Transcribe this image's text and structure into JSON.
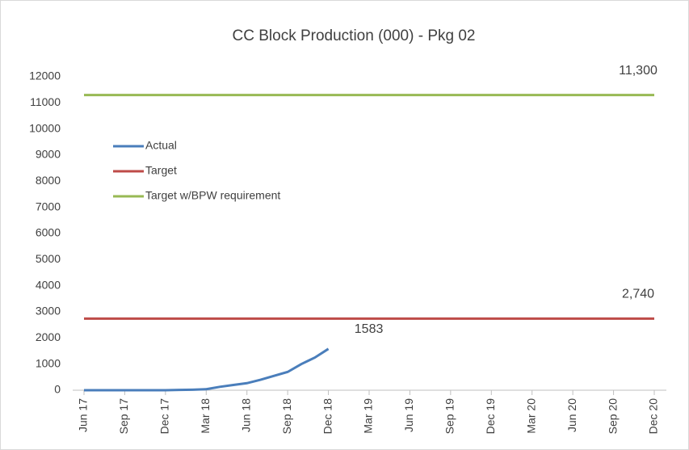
{
  "chart_data": {
    "type": "line",
    "title": "CC Block Production (000) - Pkg 02",
    "categories": [
      "Jun 17",
      null,
      null,
      "Sep 17",
      null,
      null,
      "Dec 17",
      null,
      null,
      "Mar 18",
      null,
      null,
      "Jun 18",
      null,
      null,
      "Sep 18",
      null,
      null,
      "Dec 18",
      null,
      null,
      "Mar 19",
      null,
      null,
      "Jun 19",
      null,
      null,
      "Sep 19",
      null,
      null,
      "Dec 19",
      null,
      null,
      "Mar 20",
      null,
      null,
      "Jun 20",
      null,
      null,
      "Sep 20",
      null,
      null,
      "Dec 20"
    ],
    "series": [
      {
        "name": "Actual",
        "color": "#4a7ebb",
        "values": [
          0,
          0,
          0,
          0,
          0,
          0,
          0,
          10,
          20,
          40,
          130,
          200,
          270,
          400,
          550,
          700,
          1000,
          1250,
          1583,
          null,
          null,
          null,
          null,
          null,
          null,
          null,
          null,
          null,
          null,
          null,
          null,
          null,
          null,
          null,
          null,
          null,
          null,
          null,
          null,
          null,
          null,
          null,
          null
        ],
        "value_labels": [
          null,
          null,
          null,
          null,
          null,
          null,
          null,
          null,
          null,
          null,
          null,
          null,
          null,
          null,
          null,
          null,
          null,
          null,
          "1583",
          null,
          null,
          null,
          null,
          null,
          null,
          null,
          null,
          null,
          null,
          null,
          null,
          null,
          null,
          null,
          null,
          null,
          null,
          null,
          null,
          null,
          null,
          null,
          null
        ]
      },
      {
        "name": "Target",
        "color": "#be4b48",
        "values": [
          2740,
          2740,
          2740,
          2740,
          2740,
          2740,
          2740,
          2740,
          2740,
          2740,
          2740,
          2740,
          2740,
          2740,
          2740,
          2740,
          2740,
          2740,
          2740,
          2740,
          2740,
          2740,
          2740,
          2740,
          2740,
          2740,
          2740,
          2740,
          2740,
          2740,
          2740,
          2740,
          2740,
          2740,
          2740,
          2740,
          2740,
          2740,
          2740,
          2740,
          2740,
          2740,
          2740
        ],
        "value_labels": [
          null,
          null,
          null,
          null,
          null,
          null,
          null,
          null,
          null,
          null,
          null,
          null,
          null,
          null,
          null,
          null,
          null,
          null,
          null,
          null,
          null,
          null,
          null,
          null,
          null,
          null,
          null,
          null,
          null,
          null,
          null,
          null,
          null,
          null,
          null,
          null,
          null,
          null,
          null,
          null,
          null,
          null,
          "2,740"
        ]
      },
      {
        "name": "Target w/BPW requirement",
        "color": "#98b954",
        "values": [
          11300,
          11300,
          11300,
          11300,
          11300,
          11300,
          11300,
          11300,
          11300,
          11300,
          11300,
          11300,
          11300,
          11300,
          11300,
          11300,
          11300,
          11300,
          11300,
          11300,
          11300,
          11300,
          11300,
          11300,
          11300,
          11300,
          11300,
          11300,
          11300,
          11300,
          11300,
          11300,
          11300,
          11300,
          11300,
          11300,
          11300,
          11300,
          11300,
          11300,
          11300,
          11300,
          11300
        ],
        "value_labels": [
          null,
          null,
          null,
          null,
          null,
          null,
          null,
          null,
          null,
          null,
          null,
          null,
          null,
          null,
          null,
          null,
          null,
          null,
          null,
          null,
          null,
          null,
          null,
          null,
          null,
          null,
          null,
          null,
          null,
          null,
          null,
          null,
          null,
          null,
          null,
          null,
          null,
          null,
          null,
          null,
          null,
          null,
          "11,300"
        ]
      }
    ],
    "ylim": [
      0,
      12000
    ],
    "yticks": [
      0,
      1000,
      2000,
      3000,
      4000,
      5000,
      6000,
      7000,
      8000,
      9000,
      10000,
      11000,
      12000
    ],
    "grid": false,
    "legend": "upper left"
  }
}
